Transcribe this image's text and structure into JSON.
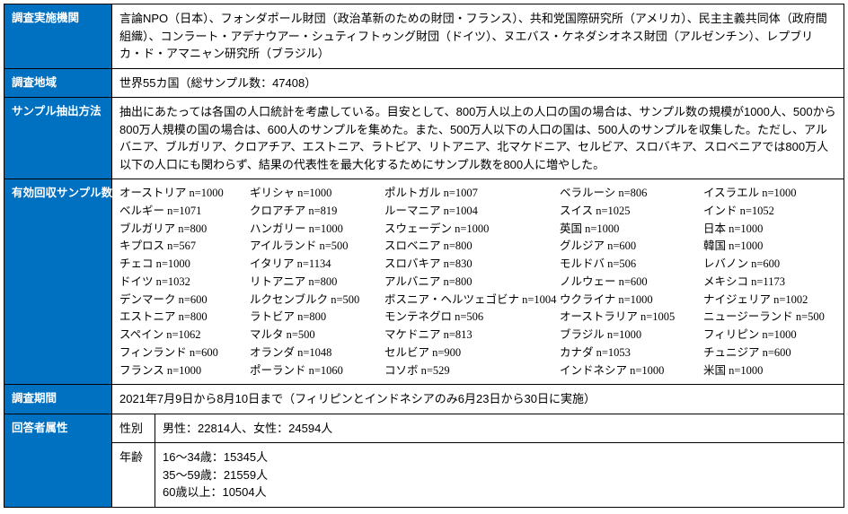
{
  "rows": {
    "org": {
      "label": "調査実施機関",
      "text": "言論NPO（日本）、フォンダポール財団（政治革新のための財団・フランス）、共和党国際研究所（アメリカ）、民主主義共同体（政府間組織）、コンラート・アデナウアー・シュティフトゥング財団（ドイツ）、ヌエバス・ケネダシオネス財団（アルゼンチン）、レプブリカ・ド・アマニャン研究所（ブラジル）"
    },
    "region": {
      "label": "調査地域",
      "text": "世界55カ国（総サンプル数：47408）"
    },
    "sampling": {
      "label": "サンプル抽出方法",
      "text": "抽出にあたっては各国の人口統計を考慮している。目安として、800万人以上の人口の国の場合は、サンプル数の規模が1000人、500から800万人規模の国の場合は、600人のサンプルを集めた。また、500万人以下の人口の国は、500人のサンプルを収集した。ただし、アルバニア、ブルガリア、クロアチア、エストニア、ラトビア、リトアニア、北マケドニア、セルビア、スロバキア、スロベニアでは800万人以下の人口にも関わらず、結果の代表性を最大化するためにサンプル数を800人に増やした。"
    },
    "valid_samples": {
      "label": "有効回収サンプル数",
      "countries": [
        "オーストリア n=1000",
        "ギリシャ n=1000",
        "ポルトガル n=1007",
        "ベラルーシ n=806",
        "イスラエル n=1000",
        "ベルギー n=1071",
        "クロアチア n=819",
        "ルーマニア n=1004",
        "スイス n=1025",
        "インド n=1052",
        "ブルガリア n=800",
        "ハンガリー n=1000",
        "スウェーデン n=1000",
        "英国 n=1000",
        "日本 n=1000",
        "キプロス n=567",
        "アイルランド n=500",
        "スロベニア n=800",
        "グルジア n=600",
        "韓国 n=1000",
        "チェコ n=1000",
        "イタリア n=1134",
        "スロバキア n=830",
        "モルドバ n=506",
        "レバノン n=600",
        "ドイツ n=1032",
        "リトアニア n=800",
        "アルバニア n=800",
        "ノルウェー n=600",
        "メキシコ n=1173",
        "デンマーク n=600",
        "ルクセンブルク n=500",
        "ボスニア・ヘルツェゴビナ n=1004",
        "ウクライナ n=1000",
        "ナイジェリア n=1002",
        "エストニア n=800",
        "ラトビア n=800",
        "モンテネグロ n=506",
        "オーストラリア n=1005",
        "ニュージーランド n=500",
        "スペイン n=1062",
        "マルタ n=500",
        "マケドニア n=813",
        "ブラジル n=1000",
        "フィリピン n=1000",
        "フィンランド n=600",
        "オランダ n=1048",
        "セルビア n=900",
        "カナダ n=1053",
        "チュニジア n=600",
        "フランス n=1000",
        "ポーランド n=1060",
        "コソボ n=529",
        "インドネシア n=1000",
        "米国 n=1000"
      ]
    },
    "period": {
      "label": "調査期間",
      "text": "2021年7月9日から8月10日まで（フィリピンとインドネシアのみ6月23日から30日に実施）"
    },
    "attributes": {
      "label": "回答者属性",
      "gender": {
        "label": "性別",
        "text": "男性：22814人、女性：24594人"
      },
      "age": {
        "label": "年齢",
        "lines": [
          "16～34歳：15345人",
          "35～59歳：21559人",
          "60歳以上：10504人"
        ]
      }
    }
  }
}
